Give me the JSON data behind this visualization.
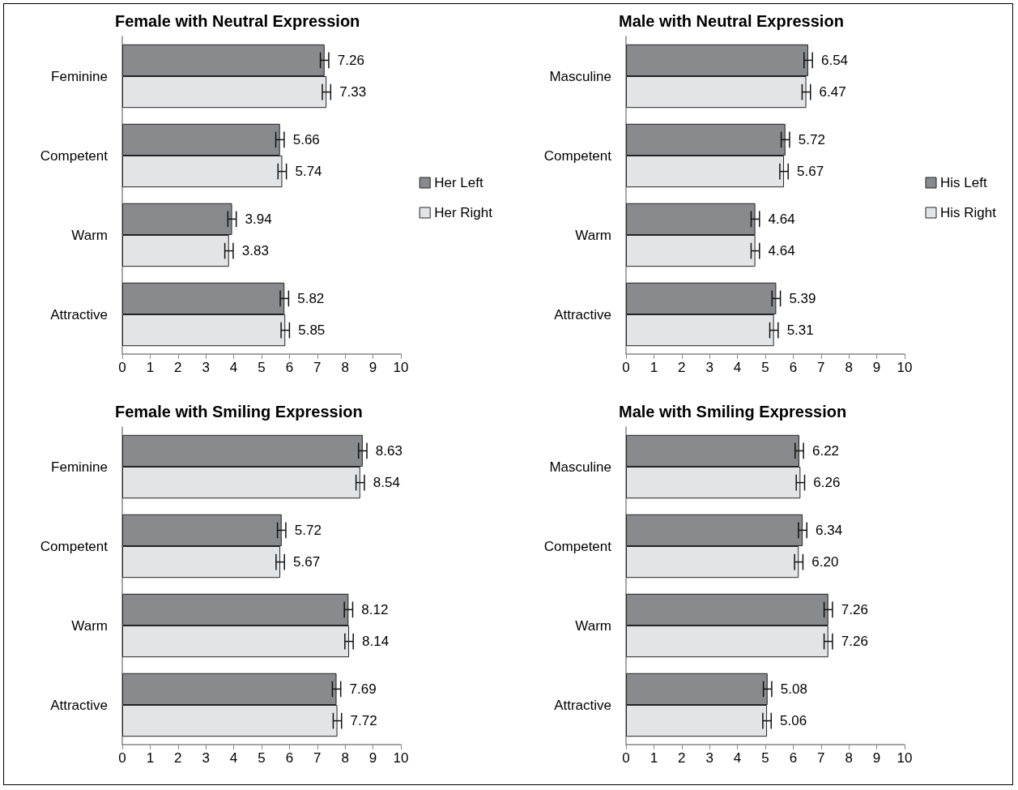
{
  "chart_data": [
    {
      "type": "bar",
      "title": "Female with Neutral Expression",
      "orientation": "horizontal",
      "categories": [
        "Feminine",
        "Competent",
        "Warm",
        "Attractive"
      ],
      "xlim": [
        0,
        10
      ],
      "xticks": [
        0,
        1,
        2,
        3,
        4,
        5,
        6,
        7,
        8,
        9,
        10
      ],
      "grid": false,
      "legend": "right",
      "series": [
        {
          "name": "Her Left",
          "color": "#898a8e",
          "values": [
            7.26,
            5.66,
            3.94,
            5.82
          ],
          "errors": [
            0.15,
            0.15,
            0.15,
            0.15
          ],
          "value_labels": [
            "7.26",
            "5.66",
            "3.94",
            "5.82"
          ]
        },
        {
          "name": "Her Right",
          "color": "#e3e4e6",
          "values": [
            7.33,
            5.74,
            3.83,
            5.85
          ],
          "errors": [
            0.15,
            0.15,
            0.15,
            0.15
          ],
          "value_labels": [
            "7.33",
            "5.74",
            "3.83",
            "5.85"
          ]
        }
      ]
    },
    {
      "type": "bar",
      "title": "Male with Neutral Expression",
      "orientation": "horizontal",
      "categories": [
        "Masculine",
        "Competent",
        "Warm",
        "Attractive"
      ],
      "xlim": [
        0,
        10
      ],
      "xticks": [
        0,
        1,
        2,
        3,
        4,
        5,
        6,
        7,
        8,
        9,
        10
      ],
      "grid": false,
      "legend": "right",
      "series": [
        {
          "name": "His Left",
          "color": "#898a8e",
          "values": [
            6.54,
            5.72,
            4.64,
            5.39
          ],
          "errors": [
            0.15,
            0.15,
            0.15,
            0.15
          ],
          "value_labels": [
            "6.54",
            "5.72",
            "4.64",
            "5.39"
          ]
        },
        {
          "name": "His Right",
          "color": "#e3e4e6",
          "values": [
            6.47,
            5.67,
            4.64,
            5.31
          ],
          "errors": [
            0.15,
            0.15,
            0.15,
            0.15
          ],
          "value_labels": [
            "6.47",
            "5.67",
            "4.64",
            "5.31"
          ]
        }
      ]
    },
    {
      "type": "bar",
      "title": "Female with Smiling Expression",
      "orientation": "horizontal",
      "categories": [
        "Feminine",
        "Competent",
        "Warm",
        "Attractive"
      ],
      "xlim": [
        0,
        10
      ],
      "xticks": [
        0,
        1,
        2,
        3,
        4,
        5,
        6,
        7,
        8,
        9,
        10
      ],
      "grid": false,
      "series": [
        {
          "color": "#898a8e",
          "values": [
            8.63,
            5.72,
            8.12,
            7.69
          ],
          "errors": [
            0.15,
            0.15,
            0.15,
            0.15
          ],
          "value_labels": [
            "8.63",
            "5.72",
            "8.12",
            "7.69"
          ]
        },
        {
          "color": "#e3e4e6",
          "values": [
            8.54,
            5.67,
            8.14,
            7.72
          ],
          "errors": [
            0.15,
            0.15,
            0.15,
            0.15
          ],
          "value_labels": [
            "8.54",
            "5.67",
            "8.14",
            "7.72"
          ]
        }
      ]
    },
    {
      "type": "bar",
      "title": "Male with Smiling Expression",
      "orientation": "horizontal",
      "categories": [
        "Masculine",
        "Competent",
        "Warm",
        "Attractive"
      ],
      "xlim": [
        0,
        10
      ],
      "xticks": [
        0,
        1,
        2,
        3,
        4,
        5,
        6,
        7,
        8,
        9,
        10
      ],
      "grid": false,
      "series": [
        {
          "color": "#898a8e",
          "values": [
            6.22,
            6.34,
            7.26,
            5.08
          ],
          "errors": [
            0.15,
            0.15,
            0.15,
            0.15
          ],
          "value_labels": [
            "6.22",
            "6.34",
            "7.26",
            "5.08"
          ]
        },
        {
          "color": "#e3e4e6",
          "values": [
            6.26,
            6.2,
            7.26,
            5.06
          ],
          "errors": [
            0.15,
            0.15,
            0.15,
            0.15
          ],
          "value_labels": [
            "6.26",
            "6.20",
            "7.26",
            "5.06"
          ]
        }
      ]
    }
  ]
}
